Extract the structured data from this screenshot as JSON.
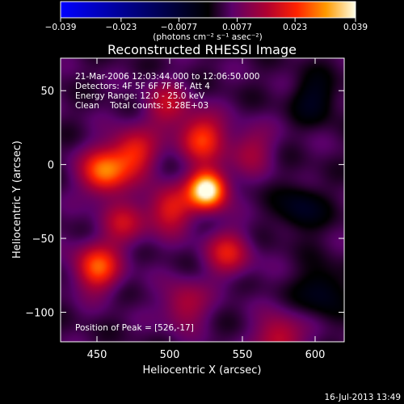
{
  "chart_data": {
    "type": "heatmap",
    "title": "Reconstructed RHESSI Image",
    "xlabel": "Heliocentric X (arcsec)",
    "ylabel": "Heliocentric Y (arcsec)",
    "xlim": [
      425,
      620
    ],
    "ylim": [
      -120,
      72
    ],
    "x_ticks": [
      450,
      500,
      550,
      600
    ],
    "y_ticks": [
      -100,
      -50,
      0,
      50
    ],
    "colorbar": {
      "range": [
        -0.039,
        0.039
      ],
      "tick_values": [
        -0.039,
        -0.023,
        -0.0077,
        0.0077,
        0.023,
        0.039
      ],
      "tick_labels": [
        "−0.039",
        "−0.023",
        "−0.0077",
        "0.0077",
        "0.023",
        "0.039"
      ],
      "unit_label": "(photons cm⁻² s⁻¹ asec⁻²)",
      "colormap": "ct5"
    },
    "annotations": {
      "time": "21-Mar-2006 12:03:44.000 to 12:06:50.000",
      "detectors": "Detectors: 4F 5F 6F 7F 8F, Att 4",
      "energy": "Energy Range: 12.0 - 25.0 keV",
      "clean": "Clean    Total counts: 3.28E+03",
      "peak": "Position of Peak = [526,-17]"
    },
    "sources": [
      {
        "x": 526,
        "y": -17,
        "value": 0.039
      },
      {
        "x": 522,
        "y": 18,
        "value": 0.02
      },
      {
        "x": 455,
        "y": -5,
        "value": 0.024
      },
      {
        "x": 475,
        "y": 8,
        "value": 0.018
      },
      {
        "x": 450,
        "y": -70,
        "value": 0.022
      },
      {
        "x": 500,
        "y": -30,
        "value": 0.017
      },
      {
        "x": 468,
        "y": -40,
        "value": 0.012
      },
      {
        "x": 540,
        "y": -60,
        "value": 0.015
      },
      {
        "x": 498,
        "y": 40,
        "value": 0.012
      },
      {
        "x": 555,
        "y": 10,
        "value": 0.01
      },
      {
        "x": 510,
        "y": -95,
        "value": 0.012
      },
      {
        "x": 575,
        "y": -118,
        "value": 0.015
      },
      {
        "x": 600,
        "y": 45,
        "value": -0.008
      },
      {
        "x": 590,
        "y": -30,
        "value": -0.009
      },
      {
        "x": 605,
        "y": -85,
        "value": -0.009
      }
    ]
  },
  "footer": {
    "timestamp": "16-Jul-2013 13:49"
  }
}
